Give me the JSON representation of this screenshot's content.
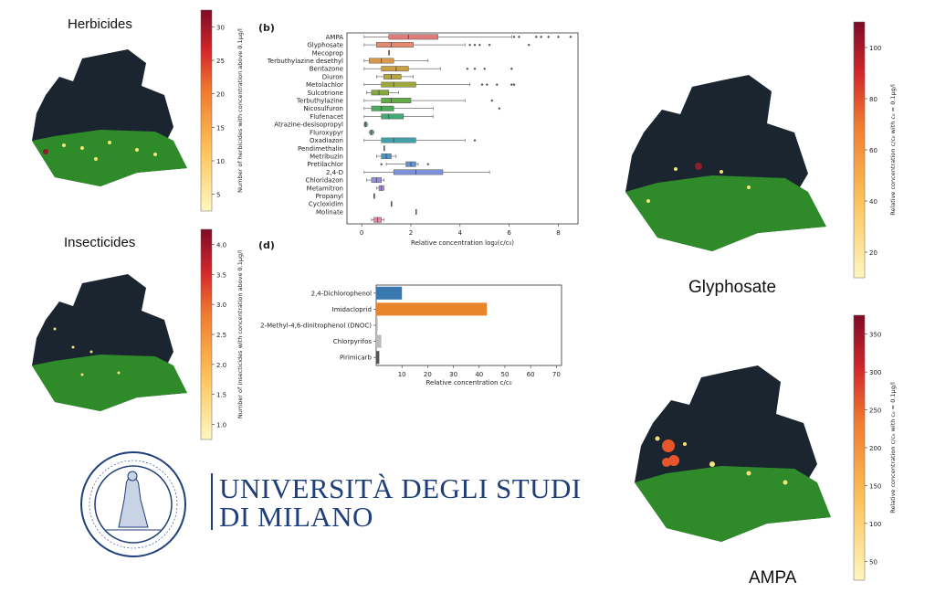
{
  "maps": {
    "herbicides": {
      "title": "Herbicides",
      "colorbar_label": "Number of herbicides with concentration above 0.1μg/l",
      "ticks": [
        "5",
        "10",
        "15",
        "20",
        "25",
        "30"
      ]
    },
    "insecticides": {
      "title": "Insecticides",
      "colorbar_label": "Number of insecticides with concentration above 0.1μg/l",
      "ticks": [
        "1.0",
        "1.5",
        "2.0",
        "2.5",
        "3.0",
        "3.5",
        "4.0"
      ]
    },
    "glyphosate": {
      "title": "Glyphosate",
      "colorbar_label": "Relative concentration c/c₀ with c₀ = 0.1μg/l",
      "ticks": [
        "20",
        "40",
        "60",
        "80",
        "100"
      ]
    },
    "ampa": {
      "title": "AMPA",
      "colorbar_label": "Relative concentration c/c₀ with c₀ = 0.1μg/l",
      "ticks": [
        "50",
        "100",
        "150",
        "200",
        "250",
        "300",
        "350"
      ]
    }
  },
  "logo": {
    "line1": "UNIVERSITÀ DEGLI STUDI",
    "line2": "DI MILANO"
  },
  "colors": {
    "map_dark": "#1b2530",
    "map_green": "#2f8a2a",
    "university_blue": "#1f3f7a"
  },
  "chart_data": [
    {
      "panel": "(b)",
      "type": "box",
      "xlabel": "Relative concentration log₂(c/c₀)",
      "xlim": [
        -0.6,
        8.8
      ],
      "xticks": [
        0,
        2,
        4,
        6,
        8
      ],
      "categories": [
        {
          "name": "AMPA",
          "color": "#e07b7b",
          "min": 0.1,
          "q1": 1.1,
          "median": 1.9,
          "q3": 3.1,
          "max": 6.1,
          "outliers": [
            6.2,
            6.4,
            7.1,
            7.3,
            7.6,
            8.0,
            8.5
          ]
        },
        {
          "name": "Glyphosate",
          "color": "#e48a6f",
          "min": 0.1,
          "q1": 0.6,
          "median": 1.2,
          "q3": 2.1,
          "max": 4.2,
          "outliers": [
            4.4,
            4.6,
            4.8,
            5.2,
            6.8
          ]
        },
        {
          "name": "Mecoprop",
          "color": "#e08c5c",
          "min": 1.1,
          "q1": 1.1,
          "median": 1.1,
          "q3": 1.1,
          "max": 1.1,
          "outliers": []
        },
        {
          "name": "Terbuthylazine desethyl",
          "color": "#d79a4c",
          "min": 0.1,
          "q1": 0.3,
          "median": 0.8,
          "q3": 1.3,
          "max": 2.7,
          "outliers": []
        },
        {
          "name": "Bentazone",
          "color": "#c9a144",
          "min": 0.1,
          "q1": 0.8,
          "median": 1.4,
          "q3": 1.9,
          "max": 3.2,
          "outliers": [
            4.3,
            4.6,
            5.0,
            6.1
          ]
        },
        {
          "name": "Diuron",
          "color": "#b6a63f",
          "min": 0.6,
          "q1": 0.9,
          "median": 1.2,
          "q3": 1.6,
          "max": 2.1,
          "outliers": []
        },
        {
          "name": "Metolachlor",
          "color": "#9ea83c",
          "min": 0.1,
          "q1": 0.8,
          "median": 1.3,
          "q3": 2.2,
          "max": 4.4,
          "outliers": [
            4.9,
            5.1,
            5.5,
            6.1,
            6.2
          ]
        },
        {
          "name": "Sulcotrione",
          "color": "#86aa3d",
          "min": 0.2,
          "q1": 0.4,
          "median": 0.7,
          "q3": 1.1,
          "max": 1.5,
          "outliers": []
        },
        {
          "name": "Terbuthylazine",
          "color": "#63ab45",
          "min": 0.1,
          "q1": 0.8,
          "median": 1.2,
          "q3": 2.0,
          "max": 4.2,
          "outliers": [
            5.3
          ]
        },
        {
          "name": "Nicosulfuron",
          "color": "#4ea95a",
          "min": 0.1,
          "q1": 0.4,
          "median": 0.8,
          "q3": 1.3,
          "max": 2.9,
          "outliers": [
            5.6
          ]
        },
        {
          "name": "Flufenacet",
          "color": "#45a676",
          "min": 0.1,
          "q1": 0.8,
          "median": 1.1,
          "q3": 1.7,
          "max": 2.9,
          "outliers": []
        },
        {
          "name": "Atrazine-desisopropyl",
          "color": "#42a48c",
          "min": 0.1,
          "q1": 0.12,
          "median": 0.15,
          "q3": 0.2,
          "max": 0.25,
          "outliers": []
        },
        {
          "name": "Fluroxypyr",
          "color": "#42a29b",
          "min": 0.3,
          "q1": 0.35,
          "median": 0.4,
          "q3": 0.45,
          "max": 0.5,
          "outliers": []
        },
        {
          "name": "Oxadiazon",
          "color": "#42a0aa",
          "min": 0.1,
          "q1": 0.8,
          "median": 1.3,
          "q3": 2.2,
          "max": 4.2,
          "outliers": [
            4.6
          ]
        },
        {
          "name": "Pendimethalin",
          "color": "#449cb8",
          "min": 0.9,
          "q1": 0.9,
          "median": 0.9,
          "q3": 0.9,
          "max": 0.9,
          "outliers": []
        },
        {
          "name": "Metribuzin",
          "color": "#4f97c7",
          "min": 0.6,
          "q1": 0.8,
          "median": 1.0,
          "q3": 1.2,
          "max": 1.4,
          "outliers": []
        },
        {
          "name": "Pretilachlor",
          "color": "#6293d1",
          "min": 1.0,
          "q1": 1.8,
          "median": 2.0,
          "q3": 2.2,
          "max": 2.3,
          "outliers": [
            0.8,
            2.7
          ]
        },
        {
          "name": "2,4-D",
          "color": "#7c92dc",
          "min": 0.1,
          "q1": 1.3,
          "median": 2.2,
          "q3": 3.3,
          "max": 5.2,
          "outliers": []
        },
        {
          "name": "Chloridazon",
          "color": "#958fdf",
          "min": 0.2,
          "q1": 0.4,
          "median": 0.6,
          "q3": 0.8,
          "max": 0.9,
          "outliers": []
        },
        {
          "name": "Metamitron",
          "color": "#a88ae0",
          "min": 0.6,
          "q1": 0.7,
          "median": 0.8,
          "q3": 0.9,
          "max": 0.9,
          "outliers": []
        },
        {
          "name": "Propanyl",
          "color": "#bf87d6",
          "min": 0.5,
          "q1": 0.5,
          "median": 0.5,
          "q3": 0.5,
          "max": 0.5,
          "outliers": []
        },
        {
          "name": "Cycloxidim",
          "color": "#d386c4",
          "min": 1.2,
          "q1": 1.2,
          "median": 1.2,
          "q3": 1.2,
          "max": 1.2,
          "outliers": []
        },
        {
          "name": "Molinate",
          "color": "#e284a8",
          "min": 2.2,
          "q1": 2.2,
          "median": 2.2,
          "q3": 2.2,
          "max": 2.2,
          "outliers": []
        }
      ],
      "extra_box": {
        "name": "",
        "color": "#e68aa0",
        "min": 0.4,
        "q1": 0.5,
        "median": 0.65,
        "q3": 0.8,
        "max": 0.9
      }
    },
    {
      "panel": "(d)",
      "type": "bar",
      "orientation": "horizontal",
      "xlabel": "Relative concentration c/c₀",
      "xlim": [
        0,
        72
      ],
      "xticks": [
        10,
        20,
        30,
        40,
        50,
        60,
        70
      ],
      "categories": [
        "2,4-Dichlorophenol",
        "Imidacloprid",
        "2-Methyl-4,6-dinitrophenol (DNOC)",
        "Chlorpyrifos",
        "Pirimicarb"
      ],
      "values": [
        10,
        43,
        0.6,
        2.0,
        1.2
      ],
      "colors": [
        "#3a78b0",
        "#e8842b",
        "#bbbbbb",
        "#bbbbbb",
        "#555555"
      ]
    }
  ]
}
